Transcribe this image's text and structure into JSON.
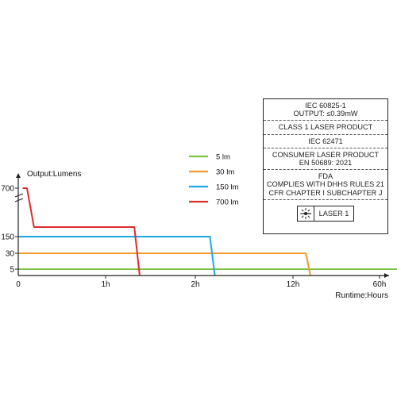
{
  "chart_data": {
    "type": "line",
    "ylabel": "Output:Lumens",
    "xlabel": "Runtime:Hours",
    "x_ticks": [
      "0",
      "1h",
      "2h",
      "12h",
      "60h"
    ],
    "y_ticks": [
      "5",
      "30",
      "150",
      "700"
    ],
    "series": [
      {
        "name": "5 lm",
        "color": "#7dc242",
        "points": [
          [
            0,
            5
          ],
          [
            4.95,
            5
          ],
          [
            4.95,
            0
          ]
        ]
      },
      {
        "name": "30 lm",
        "color": "#f39a2b",
        "points": [
          [
            0,
            30
          ],
          [
            3.15,
            30
          ],
          [
            3.2,
            0
          ]
        ]
      },
      {
        "name": "150 lm",
        "color": "#1aa9e4",
        "points": [
          [
            0,
            150
          ],
          [
            2.15,
            150
          ],
          [
            2.2,
            0
          ]
        ]
      },
      {
        "name": "700 lm",
        "color": "#e02b2b",
        "points": [
          [
            0.05,
            700
          ],
          [
            0.1,
            700
          ],
          [
            0.18,
            230
          ],
          [
            1.32,
            230
          ],
          [
            1.38,
            0
          ]
        ]
      }
    ]
  },
  "certification": {
    "sections": [
      [
        "IEC 60825-1",
        "OUTPUT: ≤0.39mW"
      ],
      [
        "CLASS 1 LASER PRODUCT"
      ],
      [
        "IEC 62471"
      ],
      [
        "CONSUMER LASER PRODUCT",
        "EN 50689: 2021"
      ],
      [
        "FDA",
        "COMPLIES WITH DHHS RULES 21",
        "CFR CHAPTER I SUBCHAPTER J"
      ]
    ],
    "laser_label": "LASER 1",
    "laser_icon": "laser-starburst-icon"
  }
}
